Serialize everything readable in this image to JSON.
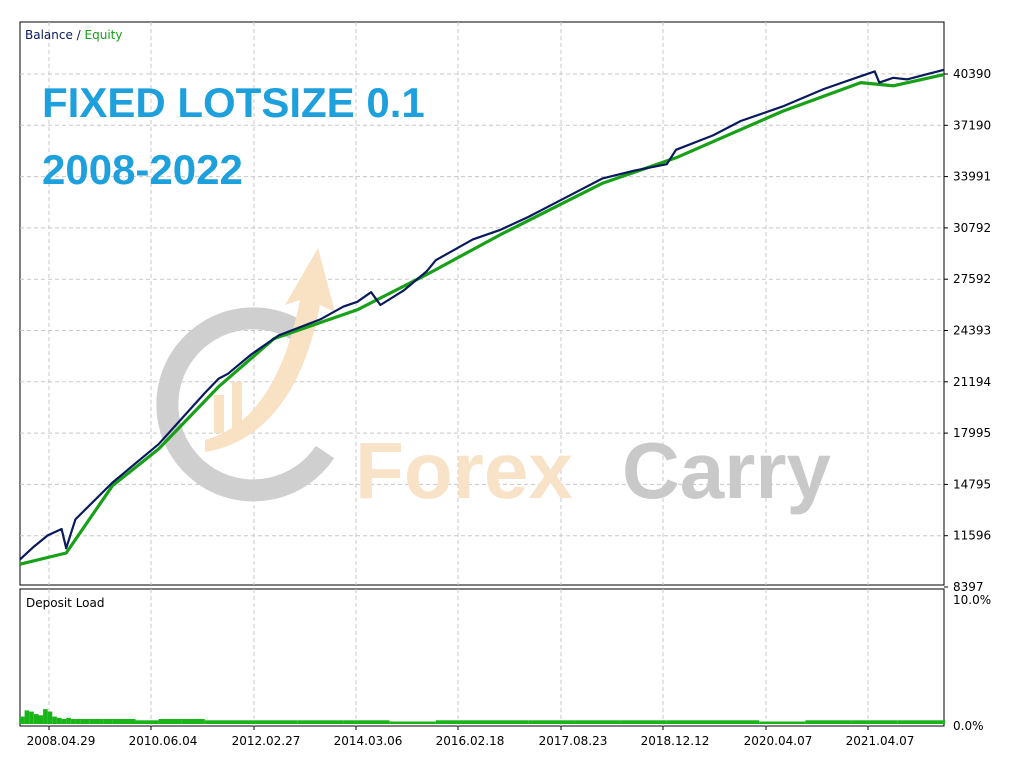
{
  "overlay": {
    "line1": "FIXED LOTSIZE 0.1",
    "line2": "2008-2022"
  },
  "watermark": {
    "word1": "Forex",
    "word2": "Carry",
    "color1": "#f9e3c8",
    "color2": "#c9c9c9"
  },
  "colors": {
    "balance": "#0a1a5c",
    "equity": "#18a018",
    "deposit": "#18b418",
    "grid": "#c8c8c8"
  },
  "chart_data": [
    {
      "type": "line",
      "legend": [
        "Balance",
        "Equity"
      ],
      "legend_position": "top-left",
      "grid": true,
      "y_ticks": [
        "40390",
        "37190",
        "33991",
        "30792",
        "27592",
        "24393",
        "21194",
        "17995",
        "14795",
        "11596",
        "8397"
      ],
      "x_ticks": [
        "2008.04.29",
        "2010.06.04",
        "2012.02.27",
        "2014.03.06",
        "2016.02.18",
        "2017.08.23",
        "2018.12.12",
        "2020.04.07",
        "2021.04.07"
      ],
      "ylim": [
        8397,
        43590
      ],
      "series": [
        {
          "name": "Balance",
          "points": [
            [
              0,
              10000
            ],
            [
              0.3,
              10800
            ],
            [
              0.6,
              11500
            ],
            [
              0.9,
              11900
            ],
            [
              1.0,
              10700
            ],
            [
              1.2,
              12500
            ],
            [
              2.0,
              14800
            ],
            [
              3.0,
              17200
            ],
            [
              3.5,
              18800
            ],
            [
              4.0,
              20400
            ],
            [
              4.3,
              21300
            ],
            [
              4.5,
              21600
            ],
            [
              5.0,
              22800
            ],
            [
              5.6,
              24000
            ],
            [
              6.5,
              25000
            ],
            [
              7.0,
              25800
            ],
            [
              7.3,
              26100
            ],
            [
              7.6,
              26700
            ],
            [
              7.8,
              25900
            ],
            [
              8.3,
              26800
            ],
            [
              8.8,
              28000
            ],
            [
              9.0,
              28700
            ],
            [
              9.8,
              30000
            ],
            [
              10.4,
              30600
            ],
            [
              11.0,
              31400
            ],
            [
              11.8,
              32600
            ],
            [
              12.6,
              33800
            ],
            [
              13.3,
              34300
            ],
            [
              14.0,
              34700
            ],
            [
              14.2,
              35600
            ],
            [
              15.0,
              36500
            ],
            [
              15.6,
              37400
            ],
            [
              16.5,
              38300
            ],
            [
              17.4,
              39400
            ],
            [
              18.2,
              40200
            ],
            [
              18.5,
              40500
            ],
            [
              18.6,
              39800
            ],
            [
              18.9,
              40100
            ],
            [
              19.2,
              40000
            ],
            [
              19.6,
              40300
            ],
            [
              20.0,
              40600
            ]
          ]
        },
        {
          "name": "Equity",
          "points": [
            [
              0,
              9700
            ],
            [
              1.0,
              10400
            ],
            [
              2.0,
              14600
            ],
            [
              3.0,
              16900
            ],
            [
              4.3,
              20800
            ],
            [
              5.5,
              23800
            ],
            [
              7.3,
              25600
            ],
            [
              8.8,
              27800
            ],
            [
              10.4,
              30300
            ],
            [
              12.6,
              33500
            ],
            [
              14.2,
              35100
            ],
            [
              16.5,
              38000
            ],
            [
              18.2,
              39800
            ],
            [
              18.9,
              39600
            ],
            [
              20.0,
              40300
            ]
          ]
        }
      ]
    },
    {
      "type": "bar",
      "title": "Deposit Load",
      "y_ticks": [
        "10.0%",
        "0.0%"
      ],
      "ylim": [
        0,
        10
      ],
      "x": [
        0,
        0.1,
        0.2,
        0.3,
        0.4,
        0.5,
        0.6,
        0.7,
        0.8,
        0.9,
        1.0,
        1.1,
        1.2,
        1.3,
        1.5,
        1.8,
        2.0,
        2.5,
        3.0,
        3.5,
        4.0,
        5.0,
        6.0,
        7.0,
        8.0,
        9.0,
        10.0,
        11.0,
        12.0,
        13.0,
        14.0,
        15.0,
        16.0,
        17.0,
        18.0,
        19.0,
        20.0
      ],
      "values": [
        0.6,
        1.1,
        1.0,
        0.8,
        0.7,
        1.2,
        1.0,
        0.6,
        0.5,
        0.4,
        0.5,
        0.4,
        0.4,
        0.4,
        0.4,
        0.4,
        0.4,
        0.3,
        0.4,
        0.4,
        0.3,
        0.3,
        0.3,
        0.3,
        0.2,
        0.3,
        0.3,
        0.3,
        0.3,
        0.3,
        0.3,
        0.3,
        0.2,
        0.3,
        0.3,
        0.3,
        0.3
      ]
    }
  ]
}
